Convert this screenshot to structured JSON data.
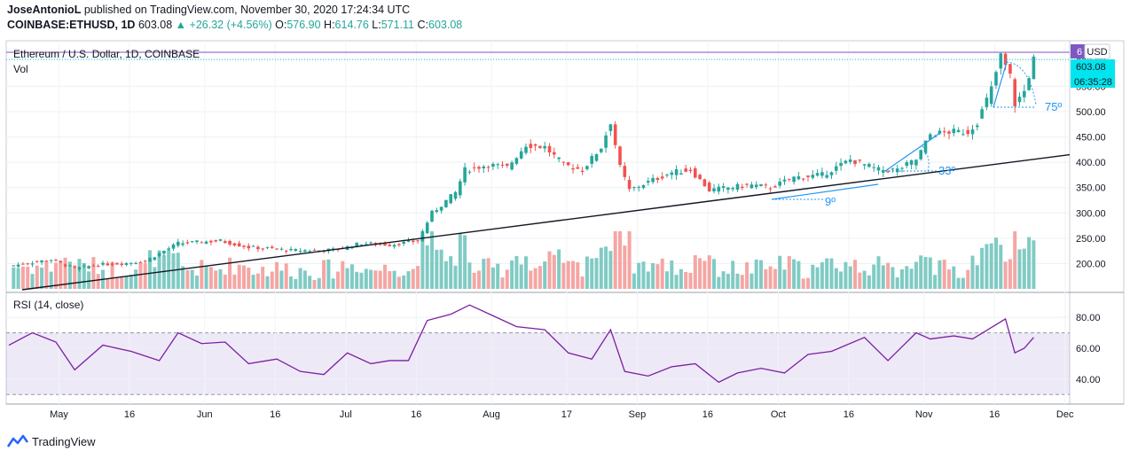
{
  "header": {
    "author": "JoseAntonioL",
    "published": "published on TradingView.com, November 30, 2020 17:24:34 UTC",
    "symbol": "COINBASE:ETHUSD, 1D",
    "last": "603.08",
    "change": "▲ +26.32 (+4.56%)",
    "o_label": "O:",
    "o": "576.90",
    "h_label": "H:",
    "h": "614.76",
    "l_label": "L:",
    "l": "571.11",
    "c_label": "C:",
    "c": "603.08"
  },
  "footer": {
    "brand": "TradingView"
  },
  "chart_data": [
    {
      "type": "candlestick",
      "title": "Ethereum / U.S. Dollar, 1D, COINBASE",
      "currency": "USD",
      "ylim": [
        150,
        640
      ],
      "yticks": [
        "200.00",
        "250.00",
        "300.00",
        "350.00",
        "400.00",
        "450.00",
        "500.00",
        "550.00",
        "600.00"
      ],
      "last_price": "603.08",
      "countdown": "06:35:28",
      "high_marker": "6",
      "x": [
        "2020-04-26",
        "2020-11-30"
      ],
      "xticks": [
        "May",
        "16",
        "Jun",
        "16",
        "Jul",
        "16",
        "Aug",
        "17",
        "Sep",
        "16",
        "Oct",
        "16",
        "Nov",
        "16",
        "Dec"
      ],
      "close_path": [
        [
          "2020-04-26",
          195
        ],
        [
          "2020-05-05",
          208
        ],
        [
          "2020-05-10",
          190
        ],
        [
          "2020-05-15",
          198
        ],
        [
          "2020-05-20",
          200
        ],
        [
          "2020-05-25",
          205
        ],
        [
          "2020-06-01",
          240
        ],
        [
          "2020-06-05",
          242
        ],
        [
          "2020-06-10",
          245
        ],
        [
          "2020-06-16",
          232
        ],
        [
          "2020-06-20",
          230
        ],
        [
          "2020-06-25",
          226
        ],
        [
          "2020-07-01",
          226
        ],
        [
          "2020-07-05",
          228
        ],
        [
          "2020-07-10",
          240
        ],
        [
          "2020-07-16",
          237
        ],
        [
          "2020-07-22",
          245
        ],
        [
          "2020-07-25",
          300
        ],
        [
          "2020-07-30",
          340
        ],
        [
          "2020-08-01",
          385
        ],
        [
          "2020-08-06",
          395
        ],
        [
          "2020-08-10",
          390
        ],
        [
          "2020-08-14",
          435
        ],
        [
          "2020-08-18",
          430
        ],
        [
          "2020-08-22",
          395
        ],
        [
          "2020-08-26",
          385
        ],
        [
          "2020-08-30",
          430
        ],
        [
          "2020-09-01",
          480
        ],
        [
          "2020-09-03",
          390
        ],
        [
          "2020-09-05",
          345
        ],
        [
          "2020-09-10",
          365
        ],
        [
          "2020-09-14",
          380
        ],
        [
          "2020-09-18",
          385
        ],
        [
          "2020-09-22",
          345
        ],
        [
          "2020-09-26",
          350
        ],
        [
          "2020-10-01",
          355
        ],
        [
          "2020-10-05",
          350
        ],
        [
          "2020-10-10",
          370
        ],
        [
          "2020-10-16",
          375
        ],
        [
          "2020-10-22",
          405
        ],
        [
          "2020-10-28",
          385
        ],
        [
          "2020-11-01",
          385
        ],
        [
          "2020-11-05",
          405
        ],
        [
          "2020-11-08",
          455
        ],
        [
          "2020-11-12",
          460
        ],
        [
          "2020-11-16",
          460
        ],
        [
          "2020-11-18",
          480
        ],
        [
          "2020-11-21",
          545
        ],
        [
          "2020-11-23",
          610
        ],
        [
          "2020-11-25",
          570
        ],
        [
          "2020-11-26",
          515
        ],
        [
          "2020-11-28",
          540
        ],
        [
          "2020-11-30",
          603
        ]
      ],
      "drawings": [
        {
          "kind": "trendline",
          "from": [
            "2020-04-26",
            150
          ],
          "to": [
            "2020-11-30",
            415
          ]
        },
        {
          "kind": "angle",
          "label": "9º",
          "at": [
            "2020-10-25",
            322
          ]
        },
        {
          "kind": "angle",
          "label": "33º",
          "at": [
            "2020-11-12",
            385
          ]
        },
        {
          "kind": "angle",
          "label": "75º",
          "at": [
            "2020-11-30",
            505
          ]
        }
      ]
    },
    {
      "type": "bar",
      "title": "Vol"
    },
    {
      "type": "line",
      "title": "RSI (14, close)",
      "ylim": [
        25,
        95
      ],
      "yticks": [
        "40.00",
        "60.00",
        "80.00"
      ],
      "band": [
        30,
        70
      ],
      "series": [
        {
          "values": [
            [
              "2020-04-26",
              62
            ],
            [
              "2020-05-01",
              70
            ],
            [
              "2020-05-06",
              64
            ],
            [
              "2020-05-10",
              46
            ],
            [
              "2020-05-16",
              62
            ],
            [
              "2020-05-22",
              58
            ],
            [
              "2020-05-28",
              52
            ],
            [
              "2020-06-01",
              70
            ],
            [
              "2020-06-06",
              63
            ],
            [
              "2020-06-11",
              64
            ],
            [
              "2020-06-16",
              50
            ],
            [
              "2020-06-22",
              53
            ],
            [
              "2020-06-27",
              45
            ],
            [
              "2020-07-02",
              43
            ],
            [
              "2020-07-07",
              57
            ],
            [
              "2020-07-12",
              50
            ],
            [
              "2020-07-16",
              52
            ],
            [
              "2020-07-20",
              52
            ],
            [
              "2020-07-24",
              78
            ],
            [
              "2020-07-29",
              82
            ],
            [
              "2020-08-02",
              88
            ],
            [
              "2020-08-07",
              81
            ],
            [
              "2020-08-12",
              74
            ],
            [
              "2020-08-18",
              72
            ],
            [
              "2020-08-23",
              57
            ],
            [
              "2020-08-28",
              53
            ],
            [
              "2020-09-01",
              72
            ],
            [
              "2020-09-04",
              45
            ],
            [
              "2020-09-09",
              42
            ],
            [
              "2020-09-14",
              48
            ],
            [
              "2020-09-19",
              50
            ],
            [
              "2020-09-24",
              38
            ],
            [
              "2020-09-28",
              44
            ],
            [
              "2020-10-03",
              47
            ],
            [
              "2020-10-08",
              44
            ],
            [
              "2020-10-13",
              56
            ],
            [
              "2020-10-18",
              58
            ],
            [
              "2020-10-25",
              67
            ],
            [
              "2020-10-30",
              52
            ],
            [
              "2020-11-05",
              70
            ],
            [
              "2020-11-08",
              66
            ],
            [
              "2020-11-13",
              68
            ],
            [
              "2020-11-17",
              66
            ],
            [
              "2020-11-24",
              79
            ],
            [
              "2020-11-26",
              57
            ],
            [
              "2020-11-28",
              60
            ],
            [
              "2020-11-30",
              67
            ]
          ]
        }
      ]
    }
  ]
}
